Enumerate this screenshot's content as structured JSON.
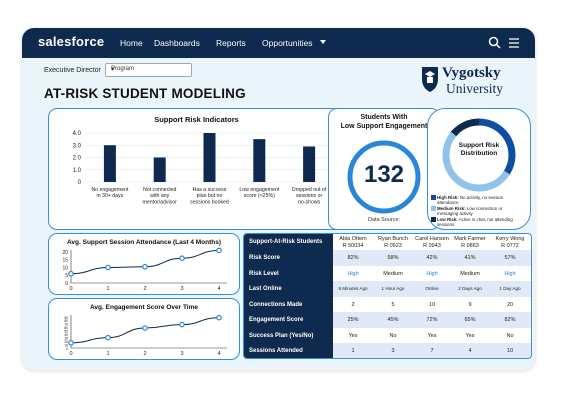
{
  "topbar": {
    "brand": "salesforce",
    "nav": [
      "Home",
      "Dashboards",
      "Reports",
      "Opportunities"
    ],
    "icons": [
      "search-icon",
      "menu-icon"
    ]
  },
  "filter": {
    "label": "Executive Director",
    "value": "Program"
  },
  "page_title": "AT-RISK STUDENT MODELING",
  "university": {
    "line1": "Vygotsky",
    "line2": "University"
  },
  "bar_card": {
    "title": "Support Risk Indicators",
    "categories": [
      "No engagement in 30+ days",
      "Not connected with any mentor/advisor",
      "Has a success plan but no sessions booked",
      "Low engagement score (<25%)",
      "Dropped out of sessions or no-shows"
    ],
    "ticks": [
      "0",
      "1.0",
      "2.0",
      "3.0",
      "4.0"
    ]
  },
  "engagement_card": {
    "title_line1": "Students With",
    "title_line2": "Low Support Engagement",
    "value": "132",
    "footer": "Data Source:"
  },
  "risk_card": {
    "title_line1": "Support Risk",
    "title_line2": "Distribution",
    "legend": [
      {
        "bold": "High Risk:",
        "text": " No activity, no session attendance",
        "color": "#0e4fa3"
      },
      {
        "bold": "Medium Risk:",
        "text": " Low connection or messaging activity",
        "color": "#8fc3ec"
      },
      {
        "bold": "Low Risk:",
        "text": " Active in chat, not attending sessions",
        "color": "#0e2a4e"
      }
    ]
  },
  "line1": {
    "title": "Avg. Support Session Attendance (Last 4 Months)",
    "x_ticks": [
      "0",
      "1",
      "2",
      "3",
      "4"
    ],
    "y_ticks": [
      "0",
      "5",
      "10",
      "15",
      "20"
    ]
  },
  "line2": {
    "title": "Avg. Engagement Score Over Time",
    "x_ticks": [
      "0",
      "1",
      "2",
      "3",
      "4"
    ],
    "y_ticks": [
      "0",
      "10",
      "20",
      "30",
      "40",
      "50",
      "60",
      "70",
      "80",
      "90"
    ]
  },
  "table": {
    "header": "Support-At-Risk Students",
    "students": [
      {
        "name": "Abia Ottem",
        "id": "R 50034"
      },
      {
        "name": "Ryan Bunch",
        "id": "R 0923"
      },
      {
        "name": "Carol Hansen",
        "id": "R 0943"
      },
      {
        "name": "Mark Farmer",
        "id": "R 0863"
      },
      {
        "name": "Kerry Wong",
        "id": "R 0772"
      }
    ],
    "rows": [
      {
        "label": "Risk Score",
        "values": [
          "82%",
          "58%",
          "42%",
          "41%",
          "57%"
        ]
      },
      {
        "label": "Risk Level",
        "values": [
          "High",
          "Medium",
          "High",
          "Medium",
          "High"
        ]
      },
      {
        "label": "Last Online",
        "values": [
          "8 Minutes Ago",
          "1 Hour Ago",
          "Online",
          "2 Days Ago",
          "1 Day Ago"
        ]
      },
      {
        "label": "Connections Made",
        "values": [
          "2",
          "5",
          "10",
          "9",
          "20"
        ]
      },
      {
        "label": "Engagement Score",
        "values": [
          "25%",
          "45%",
          "72%",
          "65%",
          "82%"
        ]
      },
      {
        "label": "Success Plan (Yes/No)",
        "values": [
          "Yes",
          "No",
          "Yes",
          "Yes",
          "No"
        ]
      },
      {
        "label": "Sessions Attended",
        "values": [
          "1",
          "3",
          "7",
          "4",
          "10"
        ]
      }
    ]
  },
  "chart_data": [
    {
      "type": "bar",
      "title": "Support Risk Indicators",
      "categories": [
        "No engagement in 30+ days",
        "Not connected with any mentor/advisor",
        "Has a success plan but no sessions booked",
        "Low engagement score (<25%)",
        "Dropped out of sessions or no-shows"
      ],
      "values": [
        3.0,
        2.0,
        4.0,
        3.5,
        2.9
      ],
      "ylim": [
        0,
        4.0
      ],
      "color": "#0e2a4e",
      "grid": true
    },
    {
      "type": "pie",
      "title": "Support Risk Distribution",
      "categories": [
        "High Risk",
        "Medium Risk",
        "Low Risk"
      ],
      "values": [
        34,
        52,
        14
      ],
      "colors": [
        "#0e4fa3",
        "#8fc3ec",
        "#0e2a4e"
      ]
    },
    {
      "type": "line",
      "title": "Avg. Support Session Attendance (Last 4 Months)",
      "x": [
        0,
        1,
        2,
        3,
        4
      ],
      "y": [
        6,
        10,
        10.5,
        16,
        21
      ],
      "xlim": [
        0,
        4
      ],
      "ylim": [
        0,
        20
      ],
      "color": "#2a86d9"
    },
    {
      "type": "line",
      "title": "Avg. Engagement Score Over Time",
      "x": [
        0,
        1,
        2,
        3,
        4
      ],
      "y": [
        15,
        30,
        58,
        68,
        88
      ],
      "xlim": [
        0,
        4
      ],
      "ylim": [
        0,
        90
      ],
      "color": "#2a86d9"
    }
  ]
}
